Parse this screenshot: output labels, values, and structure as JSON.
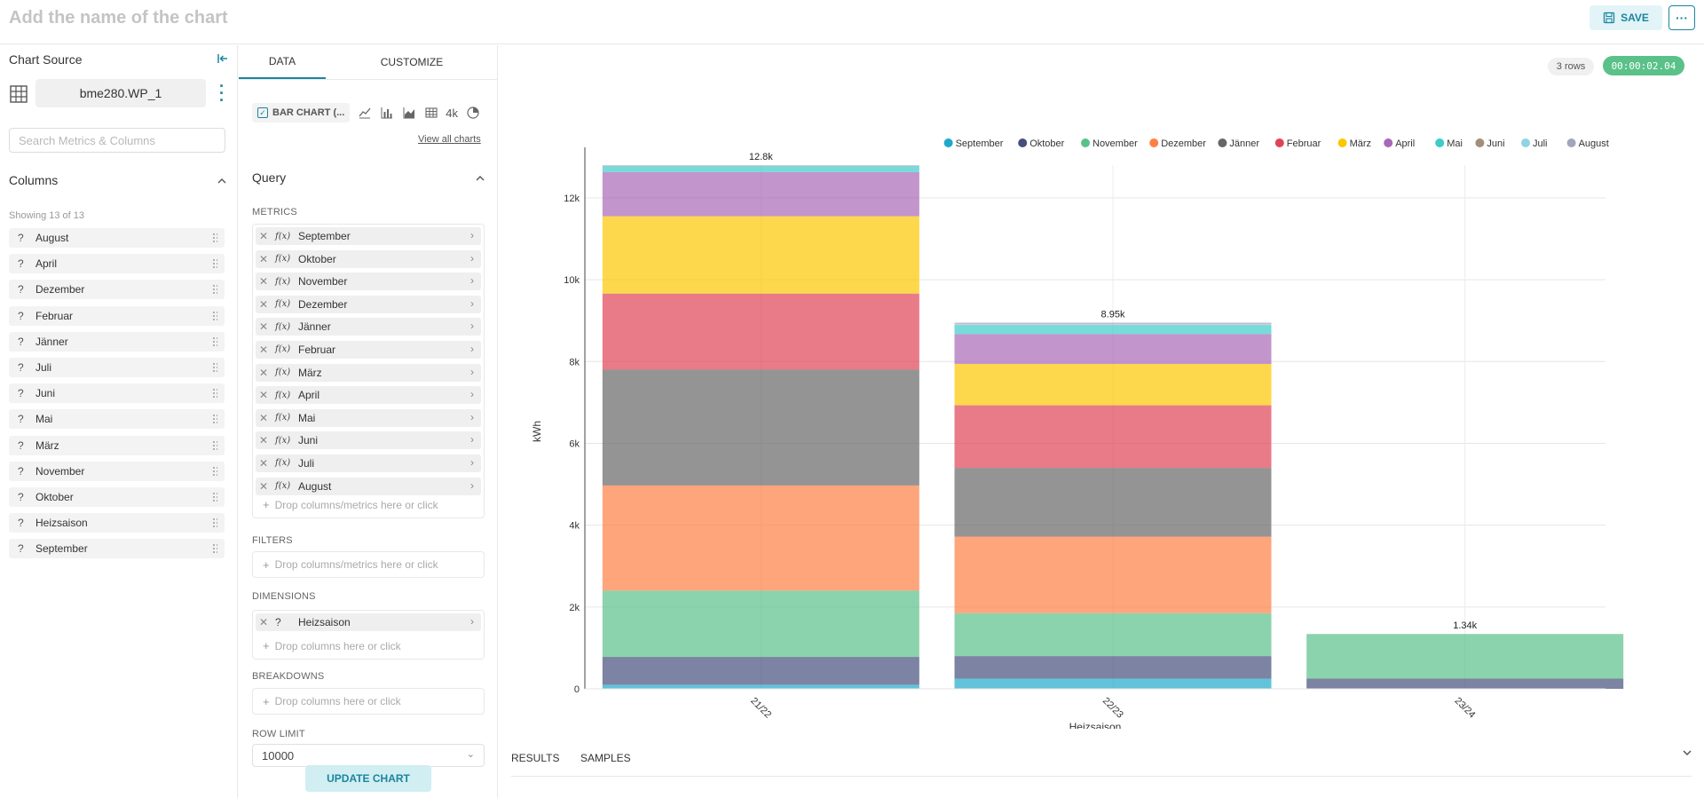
{
  "header": {
    "chart_name_placeholder": "Add the name of the chart",
    "save_label": "SAVE",
    "more_label": "···"
  },
  "left": {
    "title": "Chart Source",
    "datasource": "bme280.WP_1",
    "search_placeholder": "Search Metrics & Columns",
    "columns_title": "Columns",
    "showing": "Showing 13 of 13",
    "columns": [
      "August",
      "April",
      "Dezember",
      "Februar",
      "Jänner",
      "Juli",
      "Juni",
      "Mai",
      "März",
      "November",
      "Oktober",
      "Heizsaison",
      "September"
    ]
  },
  "middle": {
    "tabs": [
      "DATA",
      "CUSTOMIZE"
    ],
    "viz_name": "BAR CHART (...",
    "viz_4k": "4k",
    "view_all": "View all charts",
    "query_title": "Query",
    "metrics_label": "METRICS",
    "metrics": [
      "September",
      "Oktober",
      "November",
      "Dezember",
      "Jänner",
      "Februar",
      "März",
      "April",
      "Mai",
      "Juni",
      "Juli",
      "August"
    ],
    "fx_label": "f(x)",
    "metrics_drop": "Drop columns/metrics here or click",
    "filters_label": "FILTERS",
    "filters_drop": "Drop columns/metrics here or click",
    "dimensions_label": "DIMENSIONS",
    "dimension": "Heizsaison",
    "dimensions_drop": "Drop columns here or click",
    "breakdowns_label": "BREAKDOWNS",
    "breakdowns_drop": "Drop columns here or click",
    "row_limit_label": "ROW LIMIT",
    "row_limit": "10000",
    "update_label": "UPDATE CHART"
  },
  "right": {
    "rows": "3 rows",
    "timer": "00:00:02.04",
    "results_tab": "RESULTS",
    "samples_tab": "SAMPLES"
  },
  "colors": {
    "accent": "#1a85a0",
    "timer_green": "#5ac189"
  },
  "chart_data": {
    "type": "bar",
    "stacked": true,
    "categories": [
      "21/22",
      "22/23",
      "23/24"
    ],
    "xlabel": "Heizsaison",
    "ylabel": "kWh",
    "ylim": [
      0,
      12800
    ],
    "yticks": [
      0,
      2000,
      4000,
      6000,
      8000,
      10000,
      12000
    ],
    "ytick_labels": [
      "0",
      "2k",
      "4k",
      "6k",
      "8k",
      "10k",
      "12k"
    ],
    "totals_labels": [
      "12.8k",
      "8.95k",
      "1.34k"
    ],
    "legend_position": "top-right",
    "grid": true,
    "series": [
      {
        "name": "September",
        "color": "#1fa8c9",
        "values": [
          100,
          250,
          0
        ]
      },
      {
        "name": "Oktober",
        "color": "#454e7c",
        "values": [
          680,
          550,
          250
        ]
      },
      {
        "name": "November",
        "color": "#5ac189",
        "values": [
          1620,
          1050,
          1090
        ]
      },
      {
        "name": "Dezember",
        "color": "#ff7f44",
        "values": [
          2570,
          1870,
          0
        ]
      },
      {
        "name": "Jänner",
        "color": "#666666",
        "values": [
          2830,
          1680,
          0
        ]
      },
      {
        "name": "Februar",
        "color": "#e04355",
        "values": [
          1860,
          1530,
          0
        ]
      },
      {
        "name": "März",
        "color": "#fcc700",
        "values": [
          1890,
          1010,
          0
        ]
      },
      {
        "name": "April",
        "color": "#a868b7",
        "values": [
          1080,
          730,
          0
        ]
      },
      {
        "name": "Mai",
        "color": "#3cccca",
        "values": [
          140,
          220,
          0
        ]
      },
      {
        "name": "Juni",
        "color": "#a38f79",
        "values": [
          10,
          10,
          0
        ]
      },
      {
        "name": "Juli",
        "color": "#8fd3e4",
        "values": [
          10,
          10,
          0
        ]
      },
      {
        "name": "August",
        "color": "#a1a6bd",
        "values": [
          10,
          40,
          0
        ]
      }
    ]
  }
}
